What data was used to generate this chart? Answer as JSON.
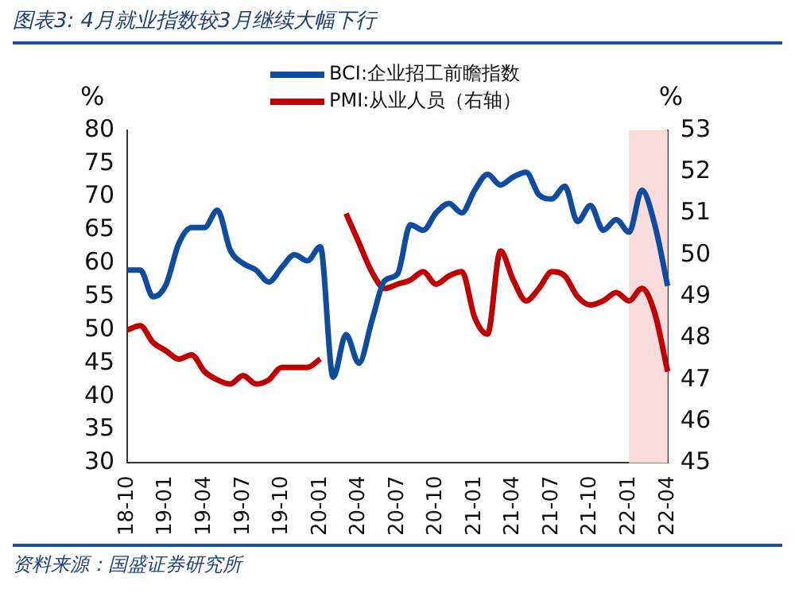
{
  "chart_data": {
    "type": "line",
    "title": "图表3:  4月就业指数较3月继续大幅下行",
    "ylabel": "%",
    "y2label": "%",
    "annotations": [
      "资料来源：国盛证券研究所"
    ],
    "categories": [
      "18-10",
      null,
      null,
      "19-01",
      null,
      null,
      "19-04",
      null,
      null,
      "19-07",
      null,
      null,
      "19-10",
      null,
      null,
      "20-01",
      null,
      null,
      "20-04",
      null,
      null,
      "20-07",
      null,
      null,
      "20-10",
      null,
      null,
      "21-01",
      null,
      null,
      "21-04",
      null,
      null,
      "21-07",
      null,
      null,
      "21-10",
      null,
      null,
      "22-01",
      null,
      null,
      "22-04"
    ],
    "series": [
      {
        "name": "BCI:企业招工前瞻指数",
        "color": "#0f4c9f",
        "values": [
          59,
          59,
          55,
          56.8,
          63,
          65.4,
          65.4,
          68,
          62,
          60,
          59,
          57.2,
          59.4,
          61.3,
          60.4,
          62.5,
          42.9,
          49.3,
          45,
          51.3,
          57.4,
          58.4,
          65.8,
          65,
          67.6,
          69,
          67.6,
          71,
          73.4,
          71.8,
          73,
          73.7,
          70.3,
          69.7,
          71.6,
          66.3,
          68.7,
          65,
          66.6,
          64.7,
          71,
          65.8,
          56.6
        ]
      },
      {
        "name": "PMI:从业人员（右轴）",
        "color": "#c00000",
        "axis": "y2",
        "values": [
          48.2,
          48.3,
          47.9,
          47.7,
          47.5,
          47.6,
          47.2,
          47.0,
          46.9,
          47.1,
          46.9,
          47.0,
          47.3,
          47.3,
          47.3,
          47.5,
          null,
          51.0,
          50.3,
          49.6,
          49.2,
          49.3,
          49.4,
          49.6,
          49.3,
          49.5,
          49.6,
          48.5,
          48.1,
          50.1,
          49.4,
          48.9,
          49.2,
          49.6,
          49.5,
          49.0,
          48.8,
          48.9,
          49.1,
          48.9,
          49.2,
          48.6,
          47.2
        ]
      }
    ],
    "ylim": [
      30,
      80
    ],
    "yticks": [
      30,
      35,
      40,
      45,
      50,
      55,
      60,
      65,
      70,
      75,
      80
    ],
    "y2lim": [
      45,
      53
    ],
    "y2ticks": [
      45,
      46,
      47,
      48,
      49,
      50,
      51,
      52,
      53
    ],
    "bands": [
      {
        "axis": "x",
        "from": "22-01",
        "to": "22-04",
        "color": "#fadcdc"
      }
    ],
    "grid": false,
    "legend": "top",
    "marker": "none",
    "line_style": "solid"
  }
}
